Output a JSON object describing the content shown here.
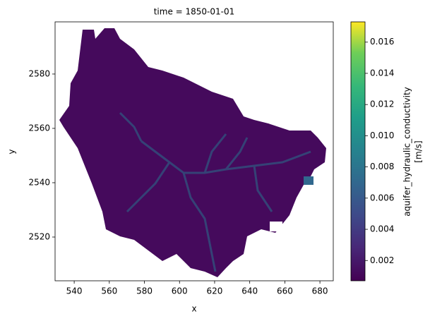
{
  "chart_data": {
    "type": "heatmap",
    "title": "time = 1850-01-01",
    "x_label": "x",
    "y_label": "y",
    "xlim": [
      529.1,
      687.6
    ],
    "xticks": [
      540,
      560,
      580,
      600,
      620,
      640,
      660,
      680
    ],
    "ylim": [
      2503.9,
      2599.2
    ],
    "yticks": [
      2520,
      2540,
      2560,
      2580
    ],
    "colorbar_label": [
      "aquifer_hydraulic_conductivity",
      "[m/s]"
    ],
    "clim": [
      0.0007,
      0.0173
    ],
    "cticks": [
      0.002,
      0.004,
      0.006,
      0.008,
      0.01,
      0.012,
      0.014,
      0.016
    ],
    "ctick_labels": [
      "0.002",
      "0.004",
      "0.006",
      "0.008",
      "0.010",
      "0.012",
      "0.014",
      "0.016"
    ],
    "colormap": "viridis"
  }
}
